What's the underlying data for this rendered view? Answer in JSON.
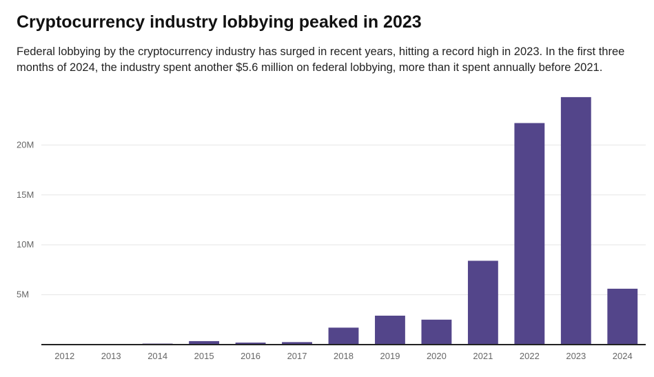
{
  "title": "Cryptocurrency industry lobbying peaked in 2023",
  "subtitle": "Federal lobbying by the cryptocurrency industry has surged in recent years, hitting a record high in 2023. In the first three months of 2024, the industry spent another $5.6 million on federal lobbying, more than it spent annually before 2021.",
  "colors": {
    "bar": "#53458a",
    "grid": "#e6e6e6",
    "axis": "#222222"
  },
  "chart_data": {
    "type": "bar",
    "title": "Cryptocurrency industry lobbying peaked in 2023",
    "xlabel": "",
    "ylabel": "",
    "categories": [
      "2012",
      "2013",
      "2014",
      "2015",
      "2016",
      "2017",
      "2018",
      "2019",
      "2020",
      "2021",
      "2022",
      "2023",
      "2024"
    ],
    "values": [
      0.02,
      0.05,
      0.1,
      0.35,
      0.2,
      0.25,
      1.7,
      2.9,
      2.5,
      8.4,
      22.2,
      24.8,
      5.6
    ],
    "value_unit": "million USD",
    "ylim": [
      0,
      25
    ],
    "yticks": [
      5,
      10,
      15,
      20
    ],
    "ytick_labels": [
      "5M",
      "10M",
      "15M",
      "20M"
    ],
    "grid": true
  }
}
